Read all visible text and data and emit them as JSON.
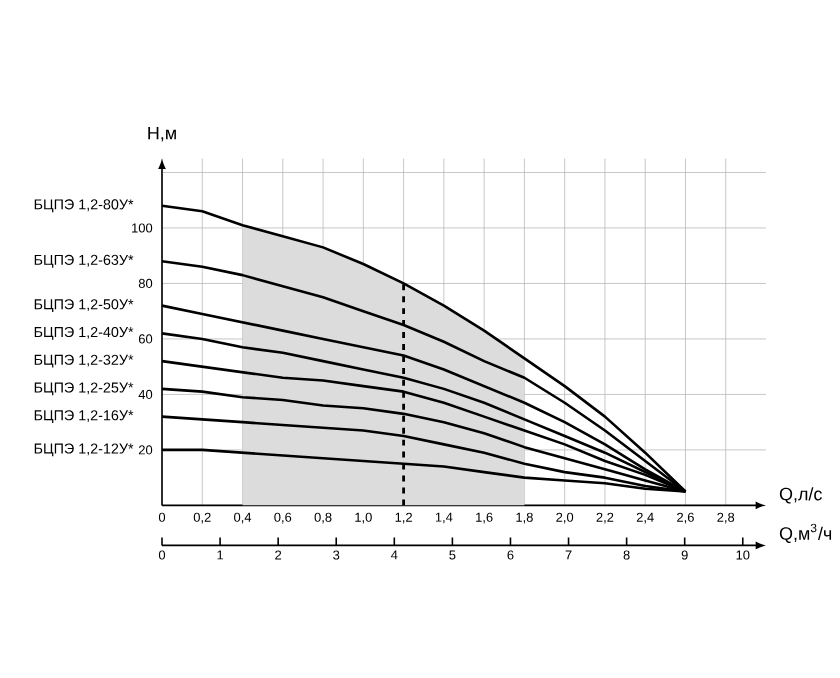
{
  "chart_data": {
    "type": "line",
    "xlabel": "Q,л/с",
    "ylabel": "H,м",
    "x2label": "Q,м$^{3}$/ч",
    "x": [
      0,
      0.2,
      0.4,
      0.6,
      0.8,
      1.0,
      1.2,
      1.4,
      1.6,
      1.8,
      2.0,
      2.2,
      2.4,
      2.6
    ],
    "series": [
      {
        "name": "БЦПЭ 1,2-80У*",
        "color": "#000000",
        "values": [
          108,
          106,
          101,
          97,
          93,
          87,
          80,
          72,
          63,
          53,
          43,
          32,
          19,
          5
        ]
      },
      {
        "name": "БЦПЭ 1,2-63У*",
        "color": "#000000",
        "values": [
          88,
          86,
          83,
          79,
          75,
          70,
          65,
          59,
          52,
          46,
          37,
          27,
          16,
          5
        ]
      },
      {
        "name": "БЦПЭ 1,2-50У*",
        "color": "#000000",
        "values": [
          72,
          69,
          66,
          63,
          60,
          57,
          54,
          49,
          43,
          37,
          30,
          22,
          13,
          5
        ]
      },
      {
        "name": "БЦПЭ 1,2-40У*",
        "color": "#000000",
        "values": [
          62,
          60,
          57,
          55,
          52,
          49,
          46,
          42,
          37,
          31,
          25,
          19,
          12,
          5
        ]
      },
      {
        "name": "БЦПЭ 1,2-32У*",
        "color": "#000000",
        "values": [
          52,
          50,
          48,
          46,
          45,
          43,
          41,
          37,
          32,
          27,
          22,
          16,
          11,
          5
        ]
      },
      {
        "name": "БЦПЭ 1,2-25У*",
        "color": "#000000",
        "values": [
          42,
          41,
          39,
          38,
          36,
          35,
          33,
          30,
          26,
          21,
          17,
          13,
          9,
          5
        ]
      },
      {
        "name": "БЦПЭ 1,2-16У*",
        "color": "#000000",
        "values": [
          32,
          31,
          30,
          29,
          28,
          27,
          25,
          22,
          19,
          15,
          12,
          10,
          7,
          5
        ]
      },
      {
        "name": "БЦПЭ 1,2-12У*",
        "color": "#000000",
        "values": [
          20,
          20,
          19,
          18,
          17,
          16,
          15,
          14,
          12,
          10,
          9,
          8,
          6,
          5
        ]
      }
    ],
    "xlim": [
      0,
      3.0
    ],
    "xticks": [
      0,
      {
        "value": 0.2,
        "label": "0,2"
      },
      {
        "value": 0.4,
        "label": "0,4"
      },
      {
        "value": 0.6,
        "label": "0,6"
      },
      {
        "value": 0.8,
        "label": "0,8"
      },
      {
        "value": 1.0,
        "label": "1,0"
      },
      {
        "value": 1.2,
        "label": "1,2"
      },
      {
        "value": 1.4,
        "label": "1,4"
      },
      {
        "value": 1.6,
        "label": "1,6"
      },
      {
        "value": 1.8,
        "label": "1,8"
      },
      {
        "value": 2.0,
        "label": "2,0"
      },
      {
        "value": 2.2,
        "label": "2,2"
      },
      {
        "value": 2.4,
        "label": "2,4"
      },
      {
        "value": 2.6,
        "label": "2,6"
      },
      {
        "value": 2.8,
        "label": "2,8"
      }
    ],
    "ylim": [
      0,
      125
    ],
    "yticks": [
      20,
      40,
      60,
      80,
      100,
      {
        "value": 120,
        "label": null
      }
    ],
    "x2lim": [
      0,
      10.4
    ],
    "x2ticks": [
      0,
      1,
      2,
      3,
      4,
      5,
      6,
      7,
      8,
      9,
      10
    ],
    "bands": [
      {
        "axis": "x",
        "from": 0.4,
        "to": 1.8,
        "color": "#dcdcdc"
      }
    ],
    "ref_lines": [
      {
        "axis": "x",
        "value": 1.2,
        "line_style": "dashed"
      }
    ],
    "grid": true,
    "legend": false,
    "marker": "none",
    "line_style": "solid"
  }
}
